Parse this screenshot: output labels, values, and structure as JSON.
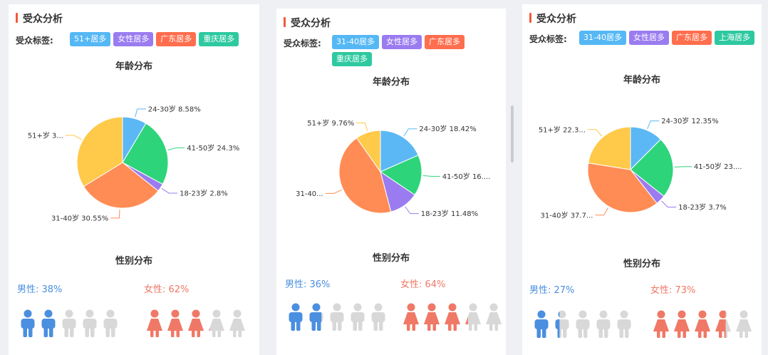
{
  "colors": {
    "blue": "#5bb8f5",
    "green": "#2ed47a",
    "purple": "#9b7cf0",
    "orange": "#ff8c55",
    "yellow": "#ffc94a",
    "tag_blue": "#55b8f5",
    "tag_purple": "#9a7cf0",
    "tag_orange": "#ff6e4e",
    "tag_teal": "#2ec9a0",
    "male": "#4a8fe0",
    "female": "#f07866",
    "inactive": "#d8d8d8"
  },
  "panels": [
    {
      "title": "受众分析",
      "tag_label": "受众标签:",
      "tags": [
        {
          "text": "51+居多",
          "color": "tag_blue"
        },
        {
          "text": "女性居多",
          "color": "tag_purple"
        },
        {
          "text": "广东居多",
          "color": "tag_orange"
        },
        {
          "text": "重庆居多",
          "color": "tag_teal"
        }
      ],
      "age_title": "年龄分布",
      "gender_title": "性别分布",
      "male_text": "男性: 38%",
      "female_text": "女性: 62%",
      "male_share": 0.38,
      "female_share": 0.62
    },
    {
      "title": "受众分析",
      "tag_label": "受众标签:",
      "tags": [
        {
          "text": "31-40居多",
          "color": "tag_blue"
        },
        {
          "text": "女性居多",
          "color": "tag_purple"
        },
        {
          "text": "广东居多",
          "color": "tag_orange"
        },
        {
          "text": "重庆居多",
          "color": "tag_teal"
        }
      ],
      "age_title": "年龄分布",
      "gender_title": "性别分布",
      "male_text": "男性: 36%",
      "female_text": "女性: 64%",
      "male_share": 0.36,
      "female_share": 0.64
    },
    {
      "title": "受众分析",
      "tag_label": "受众标签:",
      "tags": [
        {
          "text": "31-40居多",
          "color": "tag_blue"
        },
        {
          "text": "女性居多",
          "color": "tag_purple"
        },
        {
          "text": "广东居多",
          "color": "tag_orange"
        },
        {
          "text": "上海居多",
          "color": "tag_teal"
        }
      ],
      "age_title": "年龄分布",
      "gender_title": "性别分布",
      "male_text": "男性: 27%",
      "female_text": "女性: 73%",
      "male_share": 0.27,
      "female_share": 0.73
    }
  ],
  "chart_data": [
    {
      "type": "pie",
      "title": "年龄分布",
      "slices": [
        {
          "name": "24-30岁",
          "value": 8.58,
          "label": "24-30岁 8.58%",
          "color": "blue"
        },
        {
          "name": "41-50岁",
          "value": 24.3,
          "label": "41-50岁 24.3%",
          "color": "green"
        },
        {
          "name": "18-23岁",
          "value": 2.8,
          "label": "18-23岁 2.8%",
          "color": "purple"
        },
        {
          "name": "31-40岁",
          "value": 30.55,
          "label": "31-40岁 30.55%",
          "color": "orange"
        },
        {
          "name": "51+岁",
          "value": 33.77,
          "label": "51+岁 3...",
          "color": "yellow"
        }
      ]
    },
    {
      "type": "pie",
      "title": "年龄分布",
      "slices": [
        {
          "name": "24-30岁",
          "value": 18.42,
          "label": "24-30岁 18.42%",
          "color": "blue"
        },
        {
          "name": "41-50岁",
          "value": 16.0,
          "label": "41-50岁 16....",
          "color": "green"
        },
        {
          "name": "18-23岁",
          "value": 11.48,
          "label": "18-23岁 11.48%",
          "color": "purple"
        },
        {
          "name": "31-40岁",
          "value": 44.34,
          "label": "31-40...",
          "color": "orange"
        },
        {
          "name": "51+岁",
          "value": 9.76,
          "label": "51+岁 9.76%",
          "color": "yellow"
        }
      ]
    },
    {
      "type": "pie",
      "title": "年龄分布",
      "slices": [
        {
          "name": "24-30岁",
          "value": 12.35,
          "label": "24-30岁 12.35%",
          "color": "blue"
        },
        {
          "name": "41-50岁",
          "value": 23.0,
          "label": "41-50岁 23....",
          "color": "green"
        },
        {
          "name": "18-23岁",
          "value": 3.7,
          "label": "18-23岁 3.7%",
          "color": "purple"
        },
        {
          "name": "31-40岁",
          "value": 37.7,
          "label": "31-40岁 37.7...",
          "color": "orange"
        },
        {
          "name": "51+岁",
          "value": 22.3,
          "label": "51+岁 22.3...",
          "color": "yellow"
        }
      ]
    }
  ]
}
